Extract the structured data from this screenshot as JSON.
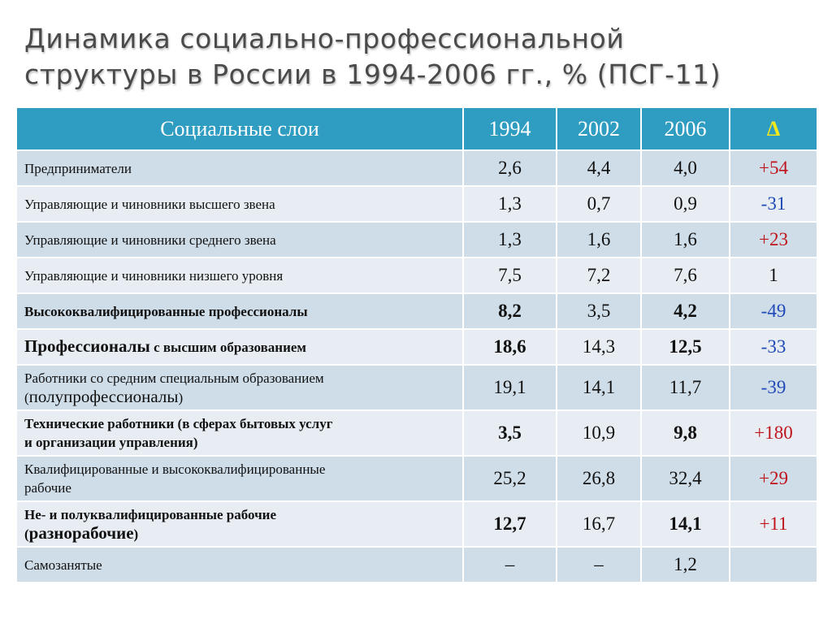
{
  "title": {
    "line1": "Динамика социально-профессиональной",
    "line2": "структуры в России в 1994-2006 гг., % (ПСГ-11)"
  },
  "colors": {
    "header_bg": "#2f9dc1",
    "row_odd": "#cfdde8",
    "row_even": "#e7edf2",
    "delta_header": "#f3e81c",
    "positive": "#c0141c",
    "negative": "#1f48b8"
  },
  "table": {
    "headers": {
      "layer": "Социальные слои",
      "y1994": "1994",
      "y2002": "2002",
      "y2006": "2006",
      "delta": "Δ"
    },
    "rows": [
      {
        "layer": "Предприниматели",
        "v1994": "2,6",
        "v2002": "4,4",
        "v2006": "4,0",
        "delta": "+54"
      },
      {
        "layer": "Управляющие и чиновники высшего звена",
        "v1994": "1,3",
        "v2002": "0,7",
        "v2006": "0,9",
        "delta": "-31"
      },
      {
        "layer": "Управляющие и чиновники среднего звена",
        "v1994": "1,3",
        "v2002": "1,6",
        "v2006": "1,6",
        "delta": "+23"
      },
      {
        "layer": "Управляющие и чиновники низшего уровня",
        "v1994": "7,5",
        "v2002": "7,2",
        "v2006": "7,6",
        "delta": "1"
      },
      {
        "layer": "Высококвалифицированные профессионалы",
        "v1994": "8,2",
        "v2002": "3,5",
        "v2006": "4,2",
        "delta": "-49"
      },
      {
        "layer_main": "Профессионалы",
        "layer_rest": " с высшим образованием",
        "v1994": "18,6",
        "v2002": "14,3",
        "v2006": "12,5",
        "delta": "-33"
      },
      {
        "layer_line1": "Работники со средним специальным образованием",
        "layer_open": "(",
        "layer_big": "полупрофессионалы",
        "layer_close": ")",
        "v1994": "19,1",
        "v2002": "14,1",
        "v2006": "11,7",
        "delta": "-39"
      },
      {
        "layer_line1": "Технические работники (в сферах бытовых услуг",
        "layer_line2": "и организации управления)",
        "v1994": "3,5",
        "v2002": "10,9",
        "v2006": "9,8",
        "delta": "+180"
      },
      {
        "layer_line1": "Квалифицированные и высококвалифицированные",
        "layer_line2": "рабочие",
        "v1994": "25,2",
        "v2002": "26,8",
        "v2006": "32,4",
        "delta": "+29"
      },
      {
        "layer_line1": "Не- и полуквалифицированные рабочие",
        "layer_open": "(",
        "layer_big": "разнорабочие",
        "layer_close": ")",
        "v1994": "12,7",
        "v2002": "16,7",
        "v2006": "14,1",
        "delta": "+11"
      },
      {
        "layer": "Самозанятые",
        "v1994": "–",
        "v2002": "–",
        "v2006": "1,2",
        "delta": ""
      }
    ]
  }
}
